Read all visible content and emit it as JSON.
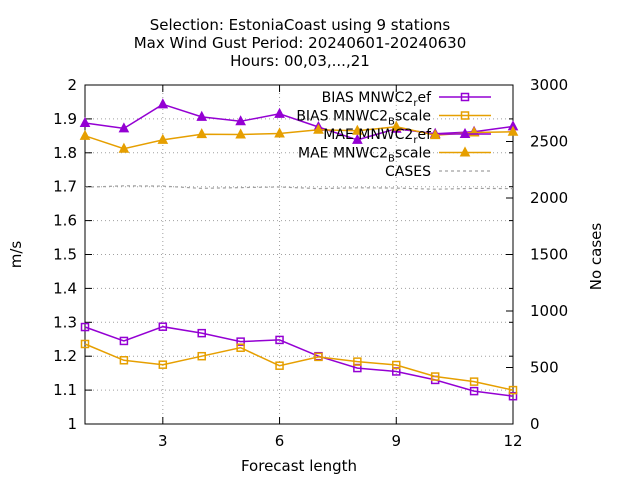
{
  "chart_data": {
    "type": "line",
    "title_lines": [
      "Selection: EstoniaCoast using      9 stations",
      "Max Wind Gust   Period: 20240601-20240630",
      "Hours: 00,03,...,21"
    ],
    "xlabel": "Forecast length",
    "ylabel": "m/s",
    "y2label": "No cases",
    "xlim": [
      1,
      12
    ],
    "ylim": [
      1,
      2
    ],
    "y2lim": [
      0,
      3000
    ],
    "xticks": [
      3,
      6,
      9,
      12
    ],
    "yticks": [
      1,
      1.1,
      1.2,
      1.3,
      1.4,
      1.5,
      1.6,
      1.7,
      1.8,
      1.9,
      2
    ],
    "y2ticks": [
      0,
      500,
      1000,
      1500,
      2000,
      2500,
      3000
    ],
    "grid": true,
    "legend_position": "top-right",
    "series": [
      {
        "name": "BIAS MNWC2_ref",
        "legend_main": "BIAS MNWC2",
        "legend_sub": "r",
        "legend_tail": "ef",
        "color": "#9400d3",
        "marker": "square",
        "axis": "y1",
        "x": [
          1,
          2,
          3,
          4,
          5,
          6,
          7,
          8,
          9,
          10,
          11,
          12
        ],
        "values": [
          1.286,
          1.245,
          1.287,
          1.268,
          1.243,
          1.248,
          1.2,
          1.165,
          1.155,
          1.13,
          1.097,
          1.082
        ]
      },
      {
        "name": "BIAS MNWC2_Bscale",
        "legend_main": "BIAS MNWC2",
        "legend_sub": "B",
        "legend_tail": "scale",
        "color": "#e69f00",
        "marker": "square",
        "axis": "y1",
        "x": [
          1,
          2,
          3,
          4,
          5,
          6,
          7,
          8,
          9,
          10,
          11,
          12
        ],
        "values": [
          1.236,
          1.188,
          1.175,
          1.2,
          1.225,
          1.172,
          1.198,
          1.184,
          1.174,
          1.14,
          1.125,
          1.1
        ]
      },
      {
        "name": "MAE MNWC2_ref",
        "legend_main": "MAE MNWC2",
        "legend_sub": "r",
        "legend_tail": "ef",
        "color": "#9400d3",
        "marker": "triangle",
        "axis": "y1",
        "x": [
          1,
          2,
          3,
          4,
          5,
          6,
          7,
          8,
          9,
          10,
          11,
          12
        ],
        "values": [
          1.888,
          1.872,
          1.943,
          1.906,
          1.893,
          1.915,
          1.876,
          1.838,
          1.871,
          1.856,
          1.862,
          1.878
        ]
      },
      {
        "name": "MAE MNWC2_Bscale",
        "legend_main": "MAE MNWC2",
        "legend_sub": "B",
        "legend_tail": "scale",
        "color": "#e69f00",
        "marker": "triangle",
        "axis": "y1",
        "x": [
          1,
          2,
          3,
          4,
          5,
          6,
          7,
          8,
          9,
          10,
          11,
          12
        ],
        "values": [
          1.85,
          1.812,
          1.838,
          1.855,
          1.854,
          1.857,
          1.868,
          1.865,
          1.877,
          1.852,
          1.86,
          1.862
        ]
      },
      {
        "name": "CASES",
        "legend_main": "CASES",
        "legend_sub": "",
        "legend_tail": "",
        "color": "#a0a0a0",
        "marker": "none",
        "dashed": true,
        "axis": "y2",
        "x": [
          1,
          2,
          3,
          4,
          5,
          6,
          7,
          8,
          9,
          10,
          11,
          12
        ],
        "values": [
          2095,
          2108,
          2105,
          2085,
          2092,
          2097,
          2083,
          2090,
          2088,
          2078,
          2085,
          2083
        ]
      }
    ]
  }
}
